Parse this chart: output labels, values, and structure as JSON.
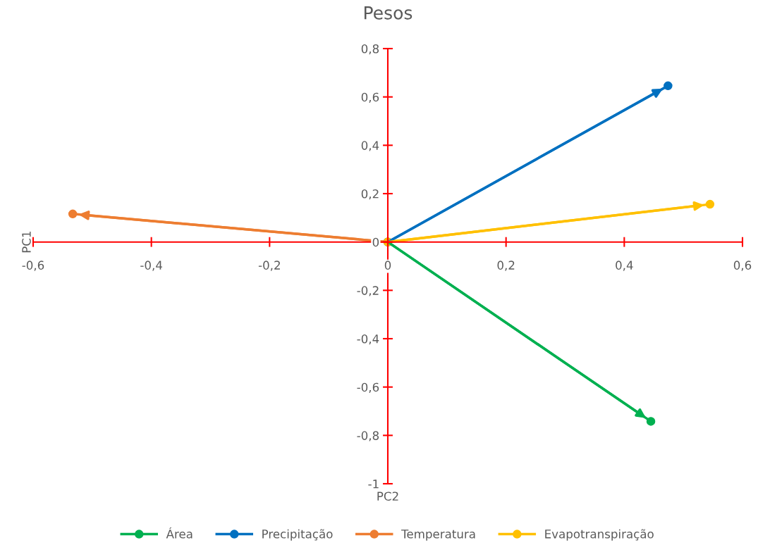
{
  "chart_data": {
    "type": "line",
    "title": "Pesos",
    "xlabel": "PC2",
    "ylabel": "PC1",
    "series": [
      {
        "name": "Área",
        "color": "#00b050",
        "x": [
          0,
          0.445
        ],
        "values": [
          0,
          -0.742
        ]
      },
      {
        "name": "Precipitação",
        "color": "#0070c0",
        "x": [
          0,
          0.474
        ],
        "values": [
          0,
          0.646
        ]
      },
      {
        "name": "Temperatura",
        "color": "#ed7d31",
        "x": [
          0,
          -0.533
        ],
        "values": [
          0,
          0.116
        ]
      },
      {
        "name": "Evapotranspiração",
        "color": "#ffc000",
        "x": [
          0,
          0.545
        ],
        "values": [
          0,
          0.156
        ]
      }
    ],
    "xlim": [
      -0.6,
      0.6
    ],
    "xticks": [
      {
        "value": -0.6,
        "label": "-0,6"
      },
      {
        "value": -0.4,
        "label": "-0,4"
      },
      {
        "value": -0.2,
        "label": "-0,2"
      },
      0,
      {
        "value": 0.2,
        "label": "0,2"
      },
      {
        "value": 0.4,
        "label": "0,4"
      },
      {
        "value": 0.6,
        "label": "0,6"
      }
    ],
    "ylim": [
      -1,
      0.8
    ],
    "yticks": [
      -1,
      {
        "value": -0.8,
        "label": "-0,8"
      },
      {
        "value": -0.6,
        "label": "-0,6"
      },
      {
        "value": -0.4,
        "label": "-0,4"
      },
      {
        "value": -0.2,
        "label": "-0,2"
      },
      0,
      {
        "value": 0.2,
        "label": "0,2"
      },
      {
        "value": 0.4,
        "label": "0,4"
      },
      {
        "value": 0.6,
        "label": "0,6"
      },
      {
        "value": 0.8,
        "label": "0,8"
      }
    ],
    "grid": false,
    "legend": "bottom",
    "marker": "circle",
    "line_style": "solid"
  }
}
